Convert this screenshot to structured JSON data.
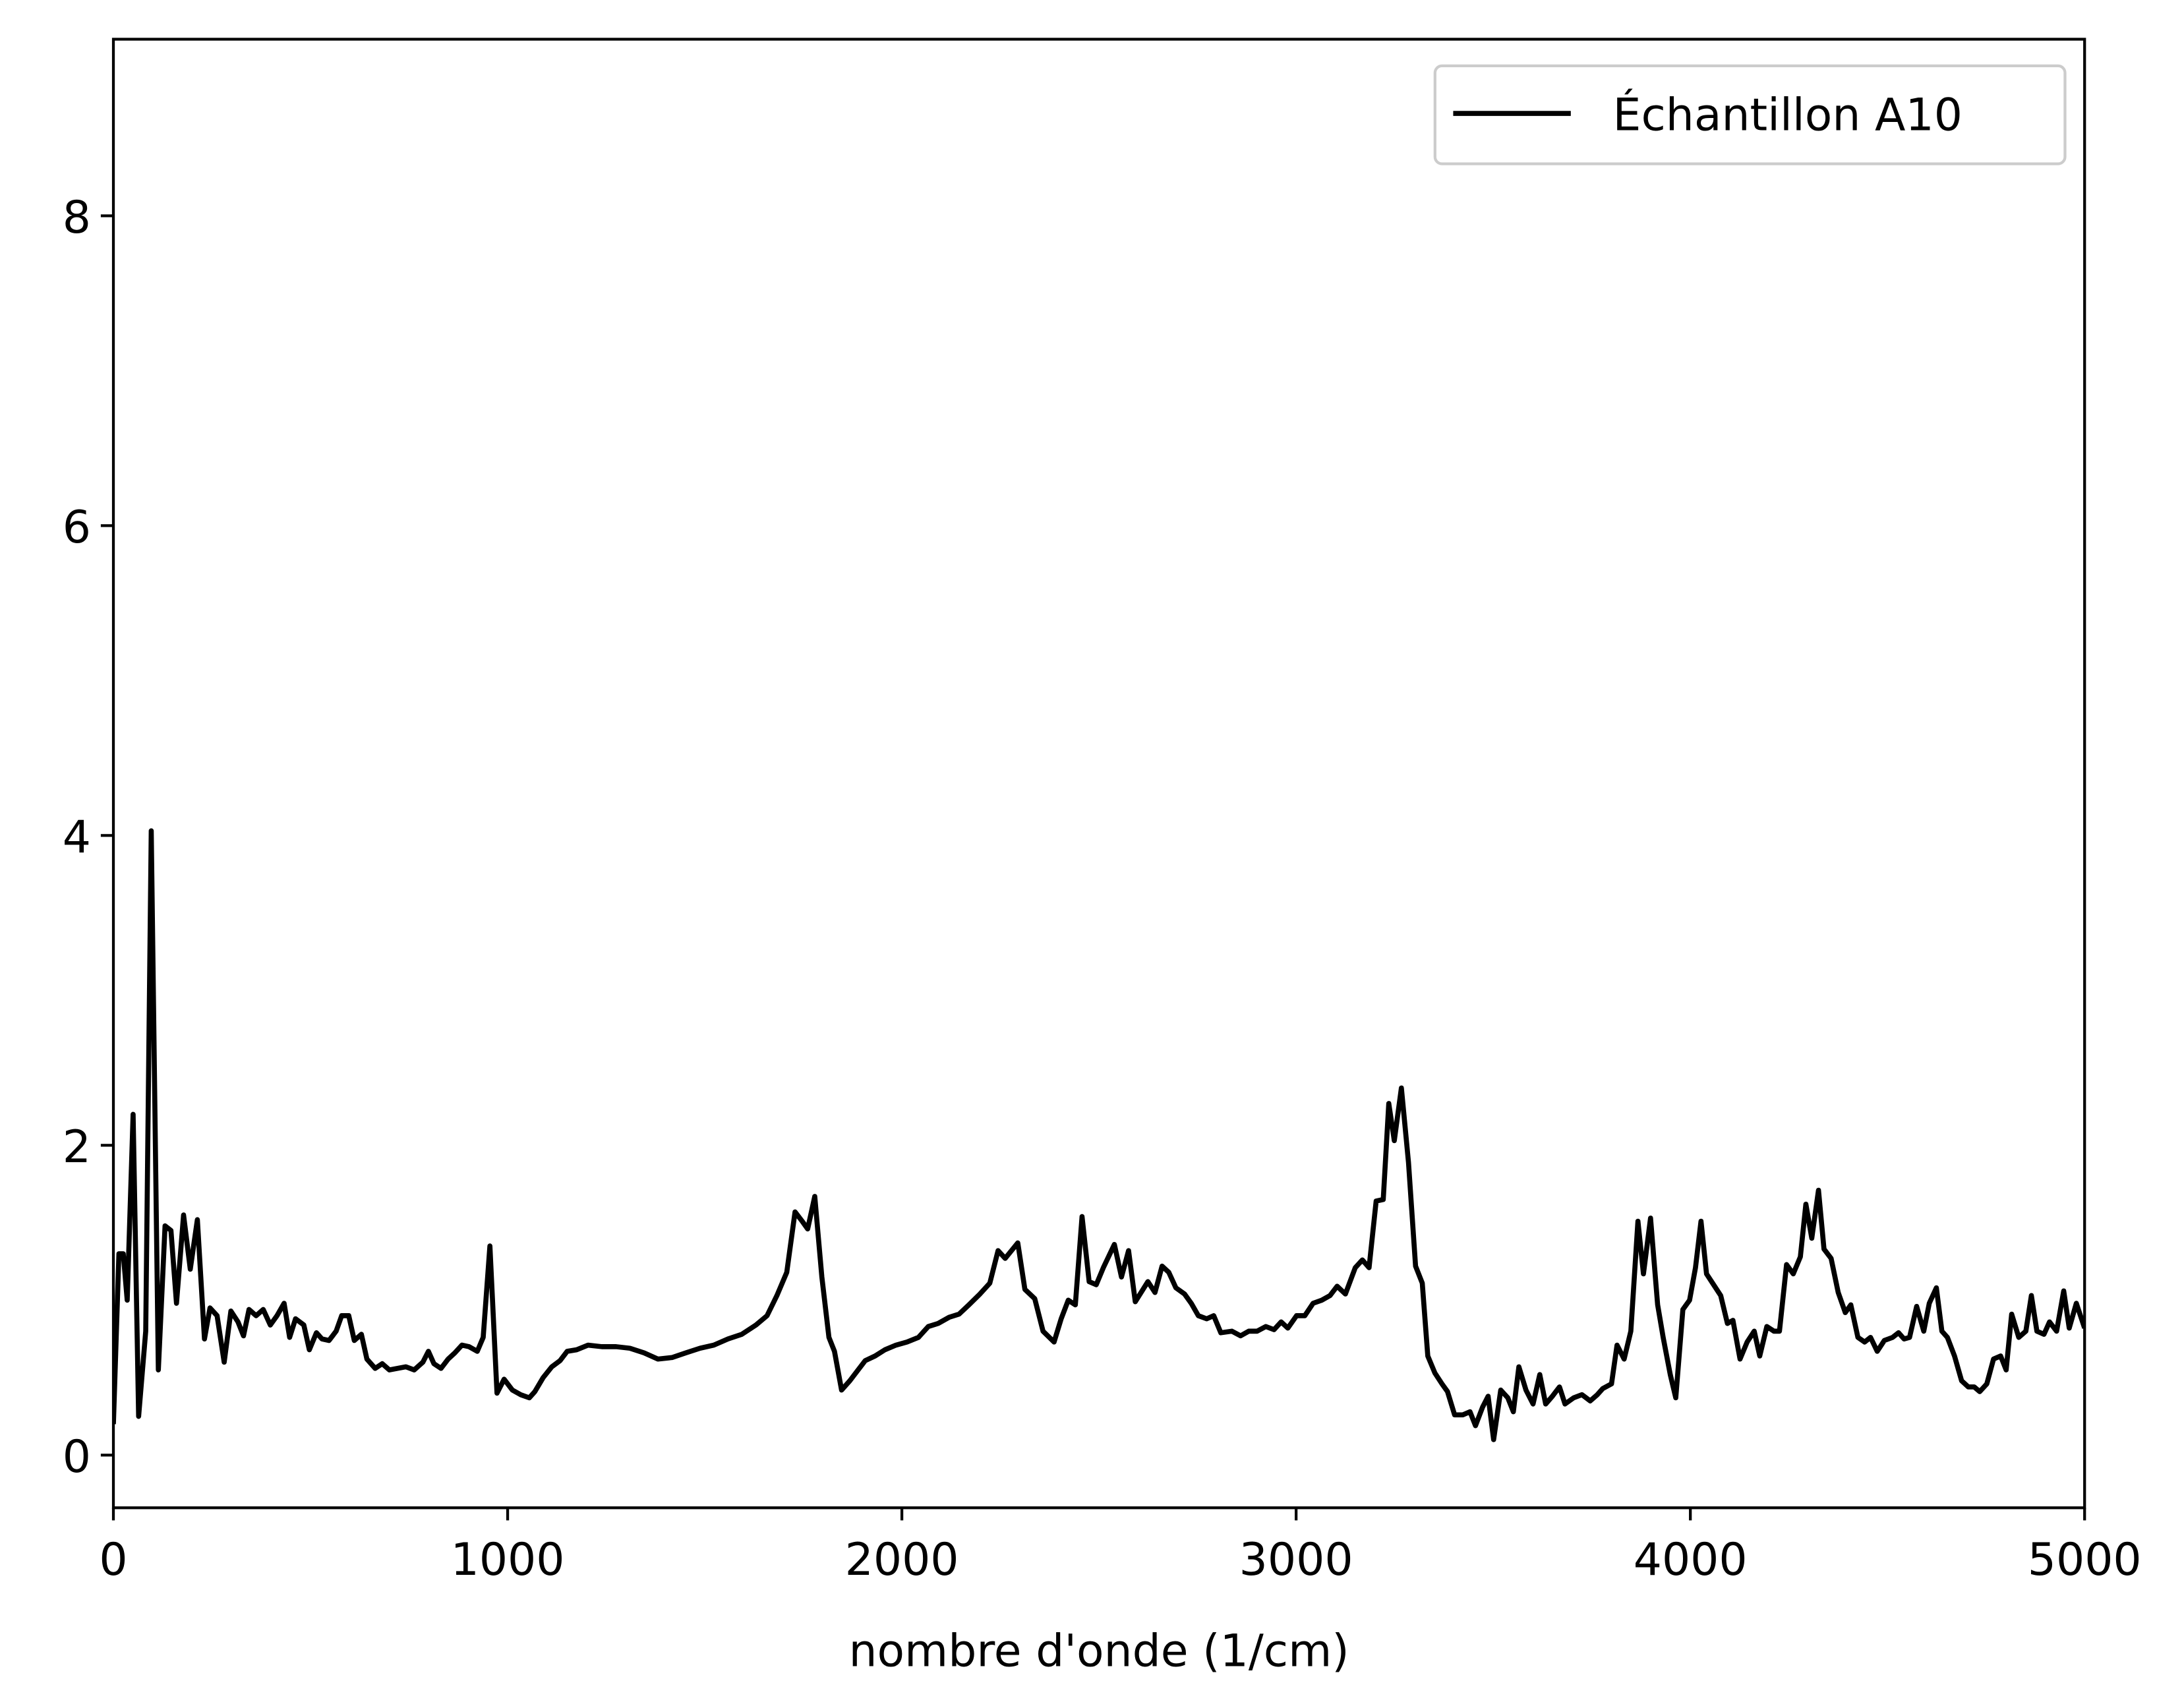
{
  "chart_data": {
    "type": "line",
    "xlabel": "nombre d'onde (1/cm)",
    "xlim": [
      0,
      5000
    ],
    "xticks": [
      0,
      1000,
      2000,
      3000,
      4000,
      5000
    ],
    "ylim": [
      -0.34,
      9.14
    ],
    "yticks": [
      0,
      2,
      4,
      6,
      8
    ],
    "grid": false,
    "legend": "upper right",
    "x": [
      0,
      14,
      25,
      35,
      50,
      64,
      82,
      96,
      114,
      131,
      146,
      160,
      178,
      195,
      213,
      231,
      245,
      263,
      281,
      298,
      316,
      330,
      344,
      362,
      380,
      398,
      415,
      433,
      447,
      462,
      483,
      497,
      515,
      529,
      547,
      565,
      579,
      597,
      611,
      629,
      643,
      664,
      682,
      700,
      742,
      763,
      785,
      799,
      813,
      831,
      849,
      866,
      884,
      902,
      923,
      938,
      955,
      973,
      991,
      1012,
      1033,
      1055,
      1069,
      1090,
      1112,
      1133,
      1151,
      1175,
      1204,
      1239,
      1275,
      1310,
      1346,
      1381,
      1417,
      1452,
      1488,
      1523,
      1559,
      1594,
      1630,
      1658,
      1683,
      1708,
      1729,
      1747,
      1761,
      1779,
      1797,
      1815,
      1829,
      1847,
      1868,
      1886,
      1907,
      1932,
      1957,
      1985,
      2013,
      2042,
      2067,
      2092,
      2120,
      2145,
      2170,
      2198,
      2223,
      2244,
      2262,
      2294,
      2312,
      2337,
      2358,
      2386,
      2404,
      2422,
      2440,
      2457,
      2475,
      2493,
      2511,
      2539,
      2557,
      2575,
      2592,
      2624,
      2642,
      2660,
      2677,
      2695,
      2717,
      2734,
      2752,
      2773,
      2791,
      2809,
      2837,
      2859,
      2880,
      2901,
      2923,
      2944,
      2962,
      2979,
      3001,
      3022,
      3043,
      3065,
      3086,
      3104,
      3125,
      3150,
      3168,
      3185,
      3203,
      3221,
      3235,
      3249,
      3267,
      3285,
      3303,
      3320,
      3334,
      3352,
      3370,
      3384,
      3402,
      3423,
      3441,
      3455,
      3473,
      3487,
      3501,
      3519,
      3537,
      3551,
      3565,
      3583,
      3601,
      3618,
      3633,
      3650,
      3668,
      3682,
      3704,
      3725,
      3746,
      3764,
      3778,
      3800,
      3814,
      3832,
      3849,
      3867,
      3881,
      3899,
      3917,
      3931,
      3949,
      3963,
      3981,
      3998,
      4013,
      4027,
      4041,
      4059,
      4077,
      4094,
      4108,
      4126,
      4144,
      4162,
      4176,
      4194,
      4212,
      4226,
      4244,
      4261,
      4279,
      4293,
      4308,
      4325,
      4339,
      4357,
      4375,
      4393,
      4407,
      4425,
      4442,
      4457,
      4474,
      4492,
      4513,
      4528,
      4542,
      4556,
      4574,
      4592,
      4606,
      4624,
      4638,
      4652,
      4670,
      4688,
      4705,
      4720,
      4734,
      4752,
      4769,
      4787,
      4801,
      4815,
      4833,
      4851,
      4865,
      4879,
      4897,
      4911,
      4929,
      4947,
      4961,
      4979,
      5000
    ],
    "series": [
      {
        "name": "Échantillon A10",
        "color": "#000000",
        "values": [
          0.2,
          1.3,
          1.3,
          1.0,
          2.2,
          0.25,
          0.8,
          4.03,
          0.55,
          1.48,
          1.45,
          0.98,
          1.55,
          1.2,
          1.52,
          0.75,
          0.95,
          0.9,
          0.6,
          0.93,
          0.86,
          0.77,
          0.94,
          0.9,
          0.94,
          0.84,
          0.9,
          0.98,
          0.76,
          0.88,
          0.84,
          0.68,
          0.79,
          0.75,
          0.74,
          0.8,
          0.9,
          0.9,
          0.74,
          0.78,
          0.62,
          0.56,
          0.59,
          0.55,
          0.57,
          0.55,
          0.6,
          0.67,
          0.59,
          0.56,
          0.62,
          0.66,
          0.71,
          0.7,
          0.67,
          0.76,
          1.35,
          0.4,
          0.49,
          0.42,
          0.39,
          0.37,
          0.41,
          0.5,
          0.57,
          0.61,
          0.67,
          0.68,
          0.71,
          0.7,
          0.7,
          0.69,
          0.66,
          0.62,
          0.63,
          0.66,
          0.69,
          0.71,
          0.75,
          0.78,
          0.84,
          0.9,
          1.03,
          1.18,
          1.57,
          1.51,
          1.46,
          1.67,
          1.15,
          0.76,
          0.67,
          0.42,
          0.48,
          0.54,
          0.61,
          0.64,
          0.68,
          0.71,
          0.73,
          0.76,
          0.83,
          0.85,
          0.89,
          0.91,
          0.97,
          1.04,
          1.11,
          1.32,
          1.27,
          1.37,
          1.07,
          1.01,
          0.8,
          0.73,
          0.88,
          1.0,
          0.97,
          1.54,
          1.12,
          1.1,
          1.21,
          1.36,
          1.15,
          1.32,
          0.99,
          1.12,
          1.05,
          1.22,
          1.18,
          1.08,
          1.04,
          0.98,
          0.9,
          0.88,
          0.9,
          0.79,
          0.8,
          0.77,
          0.8,
          0.8,
          0.83,
          0.81,
          0.86,
          0.82,
          0.9,
          0.9,
          0.98,
          1.0,
          1.03,
          1.09,
          1.04,
          1.21,
          1.26,
          1.21,
          1.64,
          1.65,
          2.27,
          2.03,
          2.37,
          1.89,
          1.22,
          1.11,
          0.64,
          0.53,
          0.46,
          0.41,
          0.26,
          0.26,
          0.28,
          0.19,
          0.31,
          0.38,
          0.1,
          0.42,
          0.37,
          0.28,
          0.57,
          0.42,
          0.33,
          0.52,
          0.33,
          0.38,
          0.44,
          0.33,
          0.37,
          0.39,
          0.35,
          0.39,
          0.43,
          0.46,
          0.71,
          0.62,
          0.8,
          1.51,
          1.17,
          1.53,
          0.97,
          0.76,
          0.52,
          0.37,
          0.94,
          1.0,
          1.21,
          1.51,
          1.17,
          1.1,
          1.03,
          0.85,
          0.87,
          0.62,
          0.73,
          0.8,
          0.64,
          0.83,
          0.8,
          0.8,
          1.23,
          1.17,
          1.28,
          1.62,
          1.4,
          1.71,
          1.33,
          1.27,
          1.05,
          0.92,
          0.97,
          0.76,
          0.73,
          0.76,
          0.67,
          0.74,
          0.76,
          0.79,
          0.75,
          0.76,
          0.96,
          0.8,
          0.98,
          1.08,
          0.8,
          0.76,
          0.64,
          0.48,
          0.44,
          0.44,
          0.41,
          0.46,
          0.62,
          0.64,
          0.55,
          0.91,
          0.76,
          0.8,
          1.03,
          0.8,
          0.78,
          0.86,
          0.8,
          1.06,
          0.82,
          0.98,
          0.82
        ]
      }
    ]
  }
}
